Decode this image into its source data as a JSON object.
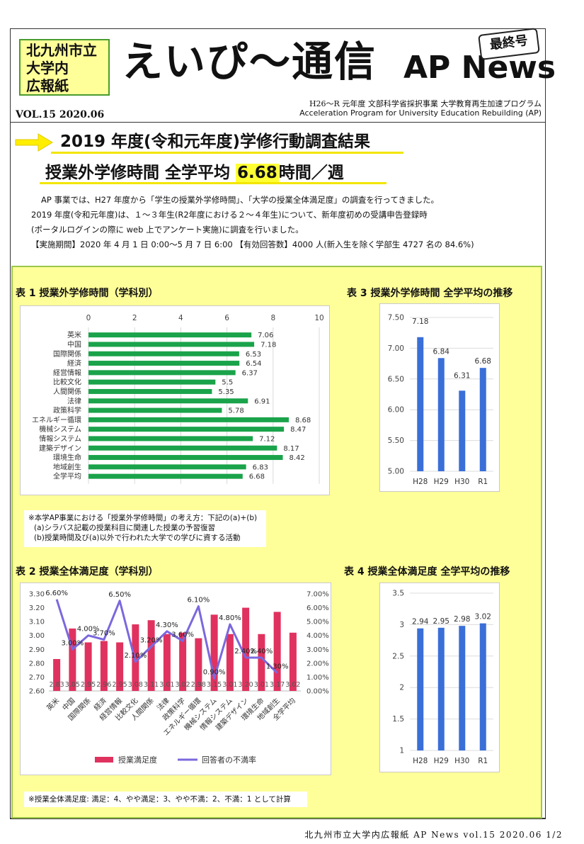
{
  "header": {
    "logo_lines": [
      "北九州市立",
      "大学内",
      "広報紙"
    ],
    "title": "えいぴ～通信",
    "title_en": "AP News",
    "stamp": "最終号",
    "subtitle_ja": "H26～R 元年度 文部科学省採択事業 大学教育再生加速プログラム",
    "subtitle_en": "Acceleration Program for University Education Rebuilding (AP)",
    "volume": "VOL.15 2020.06"
  },
  "headline": {
    "line1": "2019 年度(令和元年度)学修行動調査結果",
    "line2_pre": "授業外学修時間 全学平均 ",
    "line2_value": "6.68",
    "line2_post": "時間／週"
  },
  "intro": [
    "AP 事業では、H27 年度から「学生の授業外学修時間」、「大学の授業全体満足度」の調査を行ってきました。",
    "2019 年度(令和元年度)は、１～３年生(R2年度における２～４年生)について、新年度初めの受講申告登録時",
    "(ポータルログインの際に web 上でアンケート実施)に調査を行いました。",
    "【実施期間】2020 年 4 月 1 日 0:00～5 月 7 日 6:00 【有効回答数】4000 人(新入生を除く学部生 4727 名の 84.6%)"
  ],
  "captions": {
    "t1": "表 1 授業外学修時間（学科別）",
    "t2": "表 2 授業全体満足度（学科別）",
    "t3": "表 3 授業外学修時間 全学平均の推移",
    "t4": "表 4 授業全体満足度 全学平均の推移"
  },
  "note1": [
    "※本学AP事業における「授業外学修時間」の考え方：下記の(a)+(b)",
    "(a)シラバス記載の授業科目に関連した授業の予習復習",
    "(b)授業時間及び(a)以外で行われた大学での学びに資する活動"
  ],
  "note2": "※授業全体満足度: 満足：4、やや満足：3、やや不満：2、不満：1 として計算",
  "footer": "北九州市立大学内広報紙 AP News vol.15 2020.06 1/2",
  "colors": {
    "green_bar": "#1aa34a",
    "blue_bar": "#3a6fd8",
    "pink_bar": "#e0325f",
    "purple_line": "#7b68dd"
  },
  "chart_data": [
    {
      "type": "bar",
      "orientation": "horizontal",
      "title": "表 1 授業外学修時間（学科別）",
      "categories": [
        "英米",
        "中国",
        "国際関係",
        "経済",
        "経営情報",
        "比較文化",
        "人間関係",
        "法律",
        "政策科学",
        "エネルギー循環",
        "機械システム",
        "情報システム",
        "建築デザイン",
        "環境生命",
        "地域創生",
        "全学平均"
      ],
      "values": [
        7.06,
        7.18,
        6.53,
        6.54,
        6.37,
        5.5,
        5.35,
        6.91,
        5.78,
        8.68,
        8.47,
        7.12,
        8.17,
        8.42,
        6.83,
        6.68
      ],
      "value_labels": [
        "7.06",
        "7.18",
        "6.53",
        "6.54",
        "6.37",
        "5.5",
        "5.35",
        "6.91",
        "5.78",
        "8.68",
        "8.47",
        "7.12",
        "8.17",
        "8.42",
        "6.83",
        "6.68"
      ],
      "xlim": [
        0,
        10
      ],
      "xticks": [
        "0",
        "2",
        "4",
        "6",
        "8",
        "10"
      ],
      "grid": true
    },
    {
      "type": "bar",
      "title": "表 3 授業外学修時間 全学平均の推移",
      "categories": [
        "H28",
        "H29",
        "H30",
        "R1"
      ],
      "values": [
        7.18,
        6.84,
        6.31,
        6.68
      ],
      "value_labels": [
        "7.18",
        "6.84",
        "6.31",
        "6.68"
      ],
      "ylim": [
        5.0,
        7.5
      ],
      "yticks": [
        "7.50",
        "7.00",
        "6.50",
        "6.00",
        "5.50",
        "5.00"
      ],
      "grid": true
    },
    {
      "type": "bar",
      "title": "表 2 授業全体満足度（学科別）",
      "categories": [
        "英米",
        "中国",
        "国際関係",
        "経済",
        "経営情報",
        "比較文化",
        "人間関係",
        "法律",
        "政策科学",
        "エネルギー循環",
        "機械システム",
        "情報システム",
        "建築デザイン",
        "環境生命",
        "地域創生",
        "全学平均"
      ],
      "series": [
        {
          "name": "授業満足度",
          "type": "bar",
          "axis": "left",
          "values": [
            2.83,
            3.05,
            2.95,
            2.96,
            2.95,
            3.08,
            3.11,
            3.01,
            3.02,
            2.98,
            3.15,
            3.01,
            3.2,
            3.01,
            3.17,
            3.02
          ],
          "value_labels": [
            "2.83",
            "3.05",
            "2.95",
            "2.96",
            "2.95",
            "3.08",
            "3.11",
            "3.01",
            "3.02",
            "2.98",
            "3.15",
            "3.01",
            "3.20",
            "3.01",
            "3.17",
            "3.02"
          ]
        },
        {
          "name": "回答者の不満率",
          "type": "line",
          "axis": "right",
          "values": [
            6.6,
            3.0,
            4.0,
            3.7,
            6.5,
            2.1,
            3.2,
            4.3,
            3.6,
            6.1,
            0.9,
            4.8,
            2.4,
            2.4,
            1.3,
            null
          ],
          "value_labels": [
            "6.60%",
            "3.00%",
            "4.00%",
            "3.70%",
            "6.50%",
            "2.10%",
            "3.20%",
            "4.30%",
            "3.60%",
            "6.10%",
            "0.90%",
            "4.80%",
            "2.40%",
            "2.40%",
            "1.30%",
            ""
          ]
        }
      ],
      "ylim": [
        2.6,
        3.3
      ],
      "yticks": [
        "3.30",
        "3.20",
        "3.10",
        "3.00",
        "2.90",
        "2.80",
        "2.70",
        "2.60"
      ],
      "y2lim": [
        0,
        7
      ],
      "y2ticks": [
        "7.00%",
        "6.00%",
        "5.00%",
        "4.00%",
        "3.00%",
        "2.00%",
        "1.00%",
        "0.00%"
      ],
      "legend": "bottom"
    },
    {
      "type": "bar",
      "title": "表 4 授業全体満足度 全学平均の推移",
      "categories": [
        "H28",
        "H29",
        "H30",
        "R1"
      ],
      "values": [
        2.94,
        2.95,
        2.98,
        3.02
      ],
      "value_labels": [
        "2.94",
        "2.95",
        "2.98",
        "3.02"
      ],
      "ylim": [
        1,
        3.5
      ],
      "yticks": [
        "3.5",
        "3",
        "2.5",
        "2",
        "1.5",
        "1"
      ],
      "grid": true
    }
  ]
}
